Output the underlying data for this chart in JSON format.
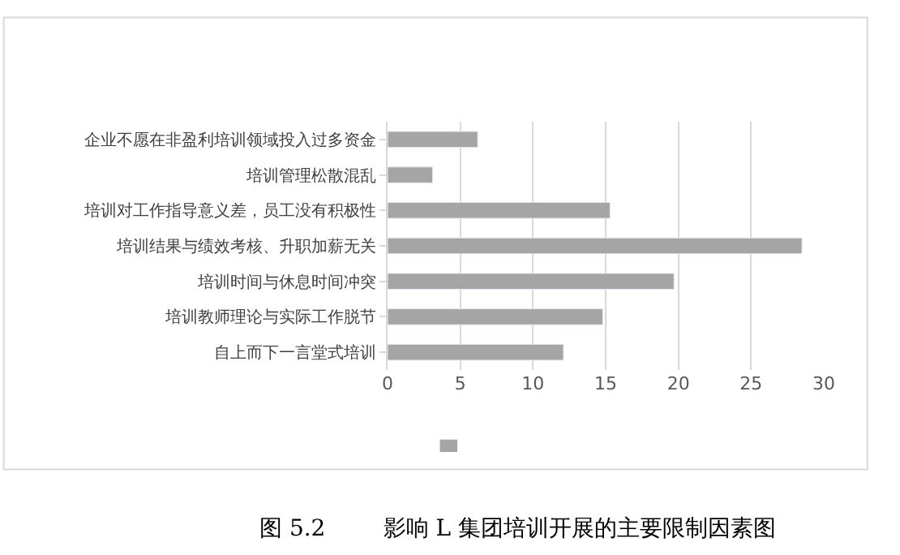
{
  "chart_data": {
    "type": "bar",
    "orientation": "horizontal",
    "title": "图 5.2        影响 L 集团培训开展的主要限制因素图",
    "categories": [
      "企业不愿在非盈利培训领域投入过多资金",
      "培训管理松散混乱",
      "培训对工作指导意义差，员工没有积极性",
      "培训结果与绩效考核、升职加薪无关",
      "培训时间与休息时间冲突",
      "培训教师理论与实际工作脱节",
      "自上而下一言堂式培训"
    ],
    "values": [
      6.2,
      3.1,
      15.3,
      28.5,
      19.7,
      14.8,
      12.1
    ],
    "color": "#a5a5a5",
    "xlim": [
      0,
      30
    ],
    "xticks": [
      0,
      5,
      10,
      15,
      20,
      25,
      30
    ],
    "grid": "x"
  }
}
